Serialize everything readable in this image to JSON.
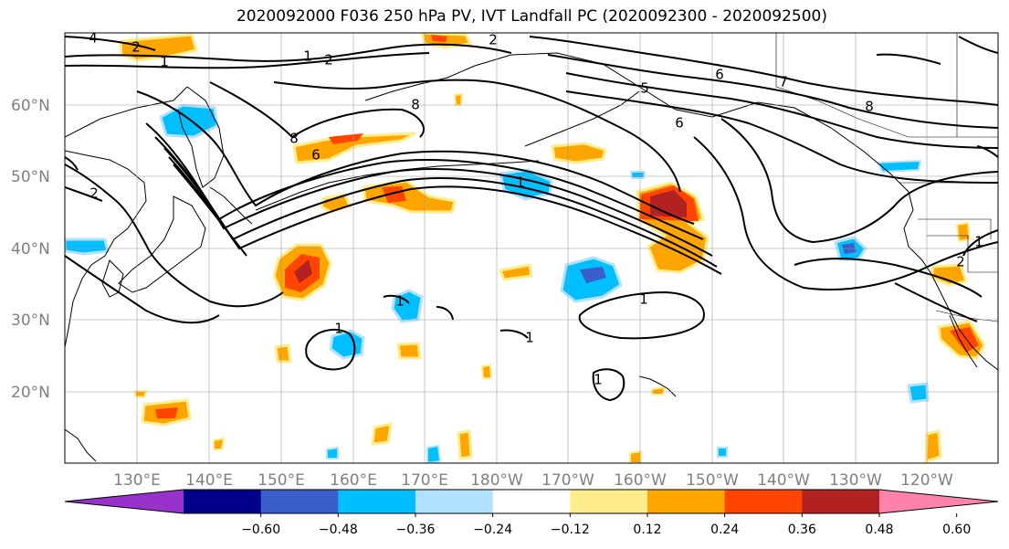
{
  "title": "2020092000 F036 250 hPa PV, IVT Landfall PC (2020092300 - 2020092500)",
  "lat_labels": [
    "60°N",
    "50°N",
    "40°N",
    "30°N",
    "20°N"
  ],
  "lon_labels": [
    "130°E",
    "140°E",
    "150°E",
    "160°E",
    "170°E",
    "180°W",
    "170°W",
    "160°W",
    "150°W",
    "140°W",
    "130°W",
    "120°W"
  ],
  "contour_labels": [
    "4",
    "2",
    "1",
    "2",
    "8",
    "6",
    "8",
    "1",
    "2",
    "1",
    "6",
    "5",
    "6",
    "7",
    "8",
    "2",
    "1",
    "2",
    "1",
    "1",
    "1",
    "1",
    "1"
  ],
  "colorbar": {
    "ticks": [
      "−0.60",
      "−0.48",
      "−0.36",
      "−0.24",
      "−0.12",
      "0.12",
      "0.24",
      "0.36",
      "0.48",
      "0.60"
    ],
    "colors": [
      "#9932cc",
      "#00008b",
      "#3a5fcd",
      "#00bfff",
      "#b0e2ff",
      "#ffffff",
      "#ffec8b",
      "#ffa500",
      "#ff4500",
      "#b22222",
      "#ff82ab"
    ]
  }
}
